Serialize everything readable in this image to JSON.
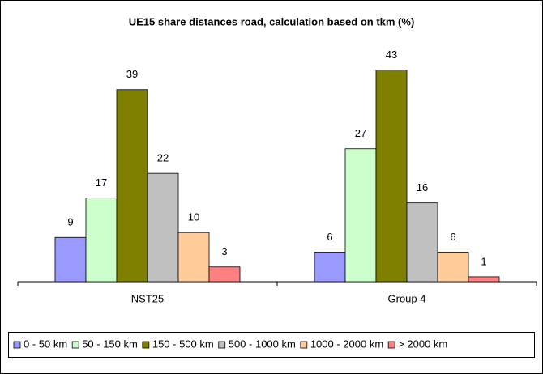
{
  "chart_data": {
    "type": "bar",
    "title": "UE15 share distances road, calculation based on tkm (%)",
    "categories": [
      "NST25",
      "Group 4"
    ],
    "series": [
      {
        "name": "0 - 50 km",
        "color": "#9999ff",
        "values": [
          9,
          6
        ]
      },
      {
        "name": "50 - 150 km",
        "color": "#ccffcc",
        "values": [
          17,
          27
        ]
      },
      {
        "name": "150 - 500 km",
        "color": "#808000",
        "values": [
          39,
          43
        ]
      },
      {
        "name": "500 - 1000 km",
        "color": "#c0c0c0",
        "values": [
          22,
          16
        ]
      },
      {
        "name": "1000 - 2000 km",
        "color": "#ffcc99",
        "values": [
          10,
          6
        ]
      },
      {
        "name": "> 2000 km",
        "color": "#ff8080",
        "values": [
          3,
          1
        ]
      }
    ],
    "ylim": [
      0,
      48
    ],
    "legend": "bottom"
  }
}
